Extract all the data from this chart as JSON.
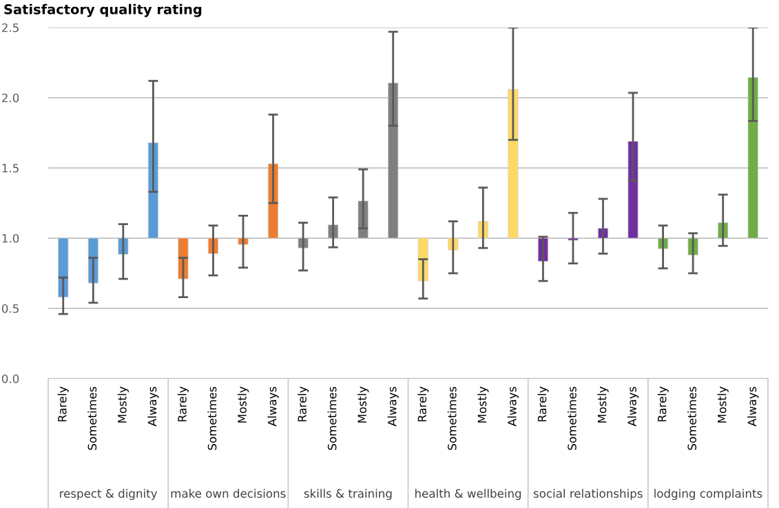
{
  "chart_data": {
    "type": "bar",
    "title": "Satisfactory quality rating",
    "categories": [
      "Rarely",
      "Sometimes",
      "Mostly",
      "Always",
      "Rarely",
      "Sometimes",
      "Mostly",
      "Always",
      "Rarely",
      "Sometimes",
      "Mostly",
      "Always",
      "Rarely",
      "Sometimes",
      "Mostly",
      "Always",
      "Rarely",
      "Sometimes",
      "Mostly",
      "Always",
      "Rarely",
      "Sometimes",
      "Mostly",
      "Always"
    ],
    "base": [
      1,
      1,
      1,
      1,
      1,
      1,
      1,
      1,
      1,
      1,
      1,
      1,
      1,
      1,
      1,
      1,
      1,
      1,
      1,
      1,
      1,
      1,
      1,
      1
    ],
    "values": [
      -0.42,
      -0.32,
      -0.115,
      0.68,
      -0.29,
      -0.11,
      -0.045,
      0.53,
      -0.07,
      0.095,
      0.265,
      1.105,
      -0.305,
      -0.085,
      0.12,
      1.06,
      -0.165,
      -0.015,
      0.07,
      0.69,
      -0.075,
      -0.12,
      0.11,
      1.145
    ],
    "errors": [
      [
        0.46,
        0.72
      ],
      [
        0.54,
        0.86
      ],
      [
        0.71,
        1.1
      ],
      [
        1.33,
        2.12
      ],
      [
        0.58,
        0.86
      ],
      [
        0.735,
        1.09
      ],
      [
        0.79,
        1.16
      ],
      [
        1.25,
        1.88
      ],
      [
        0.77,
        1.11
      ],
      [
        0.935,
        1.29
      ],
      [
        1.07,
        1.49
      ],
      [
        1.8,
        2.47
      ],
      [
        0.57,
        0.85
      ],
      [
        0.75,
        1.12
      ],
      [
        0.93,
        1.36
      ],
      [
        1.7,
        2.5
      ],
      [
        0.695,
        1.01
      ],
      [
        0.82,
        1.18
      ],
      [
        0.89,
        1.28
      ],
      [
        1.41,
        2.035
      ],
      [
        0.785,
        1.09
      ],
      [
        0.75,
        1.035
      ],
      [
        0.945,
        1.31
      ],
      [
        1.835,
        2.5
      ]
    ],
    "colors": [
      "#5b9bd5",
      "#5b9bd5",
      "#5b9bd5",
      "#5b9bd5",
      "#ed7d31",
      "#ed7d31",
      "#ed7d31",
      "#ed7d31",
      "#7f7f7f",
      "#7f7f7f",
      "#7f7f7f",
      "#7f7f7f",
      "#ffd966",
      "#ffd966",
      "#ffd966",
      "#ffd966",
      "#7030a0",
      "#7030a0",
      "#7030a0",
      "#7030a0",
      "#70ad47",
      "#70ad47",
      "#70ad47",
      "#70ad47"
    ],
    "annotations": [
      "respect & dignity",
      "make own decisions",
      "skills & training",
      "health & wellbeing",
      "social relationships",
      "lodging complaints"
    ],
    "ylim": [
      0,
      2.5
    ],
    "yticks": [
      {
        "value": 0,
        "label": "0.0"
      },
      {
        "value": 0.5,
        "label": "0.5"
      },
      {
        "value": 1,
        "label": "1.0"
      },
      {
        "value": 1.5,
        "label": "1.5"
      },
      {
        "value": 2,
        "label": "2.0"
      },
      {
        "value": 2.5,
        "label": "2.5"
      }
    ],
    "grid": "y",
    "legend": false
  }
}
